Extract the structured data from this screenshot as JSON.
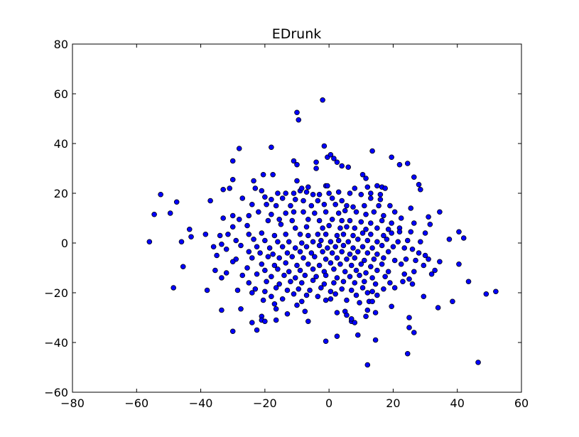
{
  "chart_data": {
    "type": "scatter",
    "title": "EDrunk",
    "xlabel": "",
    "ylabel": "",
    "xlim": [
      -80,
      60
    ],
    "ylim": [
      -60,
      80
    ],
    "xticks": [
      -80,
      -60,
      -40,
      -20,
      0,
      20,
      40,
      60
    ],
    "yticks": [
      -60,
      -40,
      -20,
      0,
      20,
      40,
      60,
      80
    ],
    "xtick_labels": [
      "−80",
      "−60",
      "−40",
      "−20",
      "0",
      "20",
      "40",
      "60"
    ],
    "ytick_labels": [
      "−60",
      "−40",
      "−20",
      "0",
      "20",
      "40",
      "60",
      "80"
    ],
    "grid": false,
    "legend": null,
    "marker_color": "#0000ff",
    "marker_edge_color": "#000000",
    "points": [
      [
        -2,
        57.5
      ],
      [
        -10,
        52.5
      ],
      [
        -9.5,
        49.5
      ],
      [
        -1.5,
        39
      ],
      [
        -28,
        38
      ],
      [
        -18,
        38.5
      ],
      [
        13.5,
        37
      ],
      [
        -0.5,
        34.5
      ],
      [
        0.5,
        35.5
      ],
      [
        -11,
        33
      ],
      [
        1.5,
        34
      ],
      [
        -30,
        33
      ],
      [
        2.5,
        32.5
      ],
      [
        -4,
        32.5
      ],
      [
        -10,
        31.5
      ],
      [
        19.5,
        34.5
      ],
      [
        22,
        31.5
      ],
      [
        24.5,
        32
      ],
      [
        4,
        31
      ],
      [
        6,
        30.5
      ],
      [
        -4,
        30
      ],
      [
        -17.5,
        27.5
      ],
      [
        -20.5,
        27.5
      ],
      [
        10.5,
        27.5
      ],
      [
        26.5,
        26.5
      ],
      [
        -30,
        25.5
      ],
      [
        -23.5,
        25
      ],
      [
        11.5,
        26
      ],
      [
        -10,
        25
      ],
      [
        28,
        23.5
      ],
      [
        15,
        23
      ],
      [
        28.5,
        21.5
      ],
      [
        -33,
        21.5
      ],
      [
        -31,
        22
      ],
      [
        -1,
        23
      ],
      [
        -0.5,
        23
      ],
      [
        -6.5,
        22.5
      ],
      [
        -9,
        21
      ],
      [
        -8.5,
        22
      ],
      [
        8,
        22
      ],
      [
        12,
        22.5
      ],
      [
        16.5,
        22.5
      ],
      [
        17.5,
        22
      ],
      [
        -23,
        22
      ],
      [
        -21,
        21
      ],
      [
        -16,
        20
      ],
      [
        -13.5,
        20
      ],
      [
        -11,
        20
      ],
      [
        -7,
        20.5
      ],
      [
        -5,
        19.5
      ],
      [
        -3,
        19.5
      ],
      [
        0,
        20
      ],
      [
        3,
        20.5
      ],
      [
        6.5,
        20
      ],
      [
        10,
        19.5
      ],
      [
        13,
        20
      ],
      [
        16,
        19.5
      ],
      [
        -52.5,
        19.5
      ],
      [
        -27,
        18
      ],
      [
        -20,
        18.5
      ],
      [
        -18,
        17.5
      ],
      [
        -14.5,
        18
      ],
      [
        -10.5,
        17.5
      ],
      [
        -8,
        17
      ],
      [
        -3.5,
        17
      ],
      [
        1,
        18
      ],
      [
        4,
        17
      ],
      [
        13,
        18
      ],
      [
        16,
        17.5
      ],
      [
        -47.5,
        16.5
      ],
      [
        -37,
        17
      ],
      [
        -24,
        15.5
      ],
      [
        -19.5,
        15.5
      ],
      [
        -16.5,
        15
      ],
      [
        -12,
        15
      ],
      [
        -5.5,
        15
      ],
      [
        -1.5,
        15.5
      ],
      [
        2,
        15.5
      ],
      [
        5.5,
        15
      ],
      [
        7.5,
        14.5
      ],
      [
        11,
        15
      ],
      [
        15.5,
        15
      ],
      [
        19,
        15
      ],
      [
        25.5,
        14
      ],
      [
        -54.5,
        11.5
      ],
      [
        -49.5,
        12
      ],
      [
        -30,
        11
      ],
      [
        -25,
        11
      ],
      [
        -22,
        12.5
      ],
      [
        -18,
        11.5
      ],
      [
        -13.5,
        12
      ],
      [
        -11,
        12.5
      ],
      [
        -8,
        12.5
      ],
      [
        -4.5,
        12
      ],
      [
        -1,
        12.5
      ],
      [
        3,
        12
      ],
      [
        5,
        13
      ],
      [
        8.5,
        12.5
      ],
      [
        11.5,
        11.5
      ],
      [
        14,
        12.5
      ],
      [
        17,
        11
      ],
      [
        20.5,
        12.5
      ],
      [
        22.5,
        10
      ],
      [
        34.5,
        12.5
      ],
      [
        -33,
        10
      ],
      [
        -28,
        9.5
      ],
      [
        -19,
        9
      ],
      [
        -15.5,
        9.5
      ],
      [
        -11.5,
        9
      ],
      [
        -6.5,
        9.5
      ],
      [
        -3,
        9
      ],
      [
        1,
        9.5
      ],
      [
        4,
        9
      ],
      [
        6.5,
        9
      ],
      [
        10,
        8.5
      ],
      [
        13,
        8
      ],
      [
        16.5,
        9
      ],
      [
        19.5,
        8
      ],
      [
        26.5,
        8
      ],
      [
        31,
        10.5
      ],
      [
        -30,
        6.5
      ],
      [
        -25.5,
        7
      ],
      [
        -15,
        7.5
      ],
      [
        -10.5,
        6
      ],
      [
        -7,
        6.5
      ],
      [
        -2,
        6
      ],
      [
        0,
        7
      ],
      [
        3.5,
        6
      ],
      [
        5.5,
        6.5
      ],
      [
        8,
        6
      ],
      [
        11.5,
        5.5
      ],
      [
        15,
        6
      ],
      [
        18.5,
        5.5
      ],
      [
        22,
        6
      ],
      [
        31.5,
        7.5
      ],
      [
        -43.5,
        5.5
      ],
      [
        -34,
        3
      ],
      [
        -31.5,
        3.5
      ],
      [
        -25,
        3.5
      ],
      [
        -21,
        4
      ],
      [
        -17,
        3
      ],
      [
        -13.5,
        3.5
      ],
      [
        -9,
        3.5
      ],
      [
        -6.5,
        3
      ],
      [
        -3.5,
        3.5
      ],
      [
        -1,
        3.5
      ],
      [
        2.5,
        3
      ],
      [
        4.5,
        3.5
      ],
      [
        7.5,
        3
      ],
      [
        10.5,
        4
      ],
      [
        13,
        3.5
      ],
      [
        17,
        3
      ],
      [
        19.5,
        4
      ],
      [
        22,
        4.5
      ],
      [
        25.5,
        4.5
      ],
      [
        30,
        4
      ],
      [
        40.5,
        4.5
      ],
      [
        -38.5,
        3.5
      ],
      [
        -43,
        2.5
      ],
      [
        -29,
        1
      ],
      [
        -23.5,
        1.5
      ],
      [
        -20,
        1
      ],
      [
        -16,
        0.5
      ],
      [
        -12.5,
        0.5
      ],
      [
        -8.5,
        0
      ],
      [
        -5,
        0.5
      ],
      [
        -2.5,
        1
      ],
      [
        0.5,
        0.5
      ],
      [
        3,
        1
      ],
      [
        6,
        0.5
      ],
      [
        9,
        1.5
      ],
      [
        12,
        1
      ],
      [
        15,
        0.5
      ],
      [
        18,
        1.5
      ],
      [
        21.5,
        0.5
      ],
      [
        24.5,
        1
      ],
      [
        28.5,
        0.5
      ],
      [
        37.5,
        1.5
      ],
      [
        42,
        2
      ],
      [
        -56,
        0.5
      ],
      [
        -46,
        0.5
      ],
      [
        -33.5,
        -0.5
      ],
      [
        -27.5,
        -1
      ],
      [
        -22.5,
        -1.5
      ],
      [
        -18.5,
        -2
      ],
      [
        -14.5,
        -1.5
      ],
      [
        -10.5,
        -2
      ],
      [
        -7,
        -1.5
      ],
      [
        -3,
        -1
      ],
      [
        -0.5,
        -2
      ],
      [
        2,
        -1.5
      ],
      [
        4.5,
        -1
      ],
      [
        7.5,
        -2
      ],
      [
        10.5,
        -1.5
      ],
      [
        13.5,
        -2
      ],
      [
        16.5,
        -1
      ],
      [
        20,
        -1.5
      ],
      [
        23.5,
        -2
      ],
      [
        26,
        -2.5
      ],
      [
        -36,
        -1.5
      ],
      [
        -32,
        -2.5
      ],
      [
        -25,
        -3.5
      ],
      [
        -21.5,
        -4
      ],
      [
        -17.5,
        -4.5
      ],
      [
        -13,
        -4
      ],
      [
        -9,
        -3.5
      ],
      [
        -5.5,
        -4
      ],
      [
        -2,
        -3.5
      ],
      [
        1,
        -4
      ],
      [
        4,
        -3.5
      ],
      [
        6.5,
        -4.5
      ],
      [
        9,
        -3.5
      ],
      [
        12,
        -4
      ],
      [
        15,
        -4.5
      ],
      [
        18.5,
        -3.5
      ],
      [
        28,
        -4
      ],
      [
        30,
        -5
      ],
      [
        -35,
        -5
      ],
      [
        -29,
        -6.5
      ],
      [
        -24,
        -6
      ],
      [
        -19,
        -5.5
      ],
      [
        -15.5,
        -6
      ],
      [
        -11.5,
        -5.5
      ],
      [
        -8,
        -6
      ],
      [
        -4.5,
        -5.5
      ],
      [
        -1,
        -6.5
      ],
      [
        2.5,
        -6
      ],
      [
        5.5,
        -6.5
      ],
      [
        8,
        -6
      ],
      [
        11,
        -7
      ],
      [
        14,
        -6.5
      ],
      [
        17,
        -6
      ],
      [
        20.5,
        -7
      ],
      [
        24,
        -6.5
      ],
      [
        27,
        -7
      ],
      [
        31,
        -6.5
      ],
      [
        34.5,
        -7.5
      ],
      [
        -45.5,
        -9.5
      ],
      [
        -30,
        -7.5
      ],
      [
        -21,
        -8.5
      ],
      [
        -17,
        -9
      ],
      [
        -13.5,
        -8
      ],
      [
        -10,
        -9
      ],
      [
        -6.5,
        -8.5
      ],
      [
        -3,
        -9
      ],
      [
        0.5,
        -8
      ],
      [
        3.5,
        -8.5
      ],
      [
        7,
        -9
      ],
      [
        10,
        -8.5
      ],
      [
        13,
        -9.5
      ],
      [
        16.5,
        -8.5
      ],
      [
        22.5,
        -8.5
      ],
      [
        29.5,
        -9
      ],
      [
        40.5,
        -8.5
      ],
      [
        -35.5,
        -11
      ],
      [
        -25.5,
        -10
      ],
      [
        -20,
        -11
      ],
      [
        -16,
        -10.5
      ],
      [
        -12.5,
        -11.5
      ],
      [
        -9,
        -11
      ],
      [
        -5,
        -10.5
      ],
      [
        -1.5,
        -11.5
      ],
      [
        1.5,
        -10.5
      ],
      [
        5,
        -11.5
      ],
      [
        8.5,
        -11
      ],
      [
        11.5,
        -12
      ],
      [
        15,
        -11
      ],
      [
        18.5,
        -11.5
      ],
      [
        23.5,
        -12.5
      ],
      [
        26.5,
        -11.5
      ],
      [
        32,
        -12.5
      ],
      [
        33,
        -11
      ],
      [
        -32,
        -12
      ],
      [
        -27,
        -13
      ],
      [
        -22.5,
        -12.5
      ],
      [
        -18,
        -13.5
      ],
      [
        -14,
        -13
      ],
      [
        -10.5,
        -14
      ],
      [
        -7.5,
        -13
      ],
      [
        -4,
        -13.5
      ],
      [
        -1,
        -13
      ],
      [
        2.5,
        -14
      ],
      [
        6.5,
        -13.5
      ],
      [
        9.5,
        -13
      ],
      [
        13.5,
        -14
      ],
      [
        17.5,
        -13.5
      ],
      [
        25,
        -14.5
      ],
      [
        -33.5,
        -14
      ],
      [
        -25,
        -16
      ],
      [
        -19.5,
        -15.5
      ],
      [
        -15.5,
        -16.5
      ],
      [
        -12,
        -15.5
      ],
      [
        -8.5,
        -16
      ],
      [
        -5,
        -15
      ],
      [
        -1.5,
        -16.5
      ],
      [
        1.5,
        -16
      ],
      [
        4.5,
        -15.5
      ],
      [
        8,
        -16
      ],
      [
        11,
        -15.5
      ],
      [
        14.5,
        -16.5
      ],
      [
        19,
        -16
      ],
      [
        23,
        -15.5
      ],
      [
        26,
        -16.5
      ],
      [
        43.5,
        -15.5
      ],
      [
        -48.5,
        -18
      ],
      [
        -38,
        -19
      ],
      [
        -28.5,
        -19
      ],
      [
        -23,
        -18.5
      ],
      [
        -20,
        -19.5
      ],
      [
        -16.5,
        -18
      ],
      [
        -13,
        -19
      ],
      [
        -9.5,
        -18.5
      ],
      [
        -6,
        -19
      ],
      [
        -2.5,
        -18
      ],
      [
        0.5,
        -19.5
      ],
      [
        4,
        -18.5
      ],
      [
        7,
        -19
      ],
      [
        10.5,
        -18
      ],
      [
        13.5,
        -19.5
      ],
      [
        17,
        -18.5
      ],
      [
        20.5,
        -18
      ],
      [
        -24,
        -20
      ],
      [
        -18,
        -21.5
      ],
      [
        -11,
        -20.5
      ],
      [
        -7,
        -21
      ],
      [
        -3.5,
        -21.5
      ],
      [
        2,
        -20.5
      ],
      [
        8.5,
        -21
      ],
      [
        12,
        -20
      ],
      [
        15,
        -21
      ],
      [
        49,
        -20.5
      ],
      [
        52,
        -19.5
      ],
      [
        -20.5,
        -23
      ],
      [
        -14.5,
        -22.5
      ],
      [
        -8.5,
        -23.5
      ],
      [
        -1,
        -23
      ],
      [
        5.5,
        -23
      ],
      [
        12.5,
        -23.5
      ],
      [
        29.5,
        -21.5
      ],
      [
        38.5,
        -23.5
      ],
      [
        -17,
        -24.5
      ],
      [
        -10,
        -25
      ],
      [
        0.5,
        -22.5
      ],
      [
        9.5,
        -24
      ],
      [
        13.5,
        -23.5
      ],
      [
        19.5,
        -25.5
      ],
      [
        34,
        -26
      ],
      [
        -33.5,
        -27
      ],
      [
        -27.5,
        -26.5
      ],
      [
        -16.5,
        -26.5
      ],
      [
        -7.5,
        -27.5
      ],
      [
        2.5,
        -28
      ],
      [
        5,
        -27.5
      ],
      [
        12,
        -27
      ],
      [
        14.5,
        -28
      ],
      [
        -21,
        -29.5
      ],
      [
        -13,
        -28.5
      ],
      [
        5.5,
        -29
      ],
      [
        11.5,
        -29.5
      ],
      [
        25,
        -30
      ],
      [
        -21,
        -31
      ],
      [
        -24,
        -32
      ],
      [
        -16.5,
        -31
      ],
      [
        -6.5,
        -31.5
      ],
      [
        7,
        -31.5
      ],
      [
        7,
        -30.5
      ],
      [
        -20,
        -31.5
      ],
      [
        -22.5,
        -35
      ],
      [
        -30,
        -35.5
      ],
      [
        8,
        -32
      ],
      [
        26.5,
        -36
      ],
      [
        9,
        -37
      ],
      [
        25,
        -34
      ],
      [
        2.5,
        -37.5
      ],
      [
        -1,
        -39.5
      ],
      [
        14.5,
        -39
      ],
      [
        24.5,
        -44.5
      ],
      [
        12,
        -49
      ],
      [
        46.5,
        -48
      ]
    ]
  }
}
